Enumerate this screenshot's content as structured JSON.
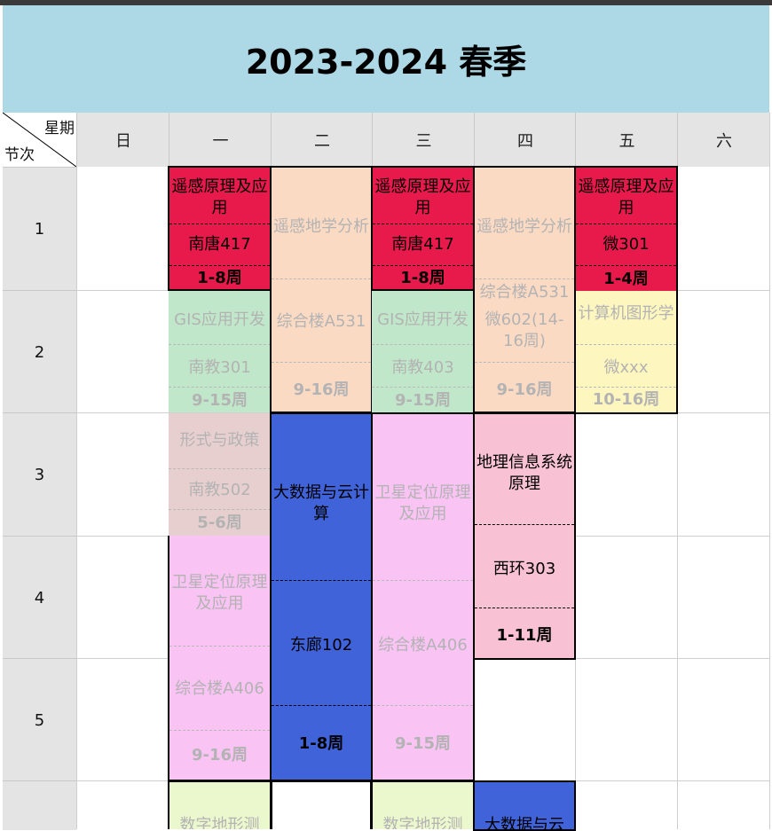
{
  "title": "2023-2024 春季",
  "corner": {
    "top": "星期",
    "bottom": "节次"
  },
  "days": [
    "日",
    "一",
    "二",
    "三",
    "四",
    "五",
    "六"
  ],
  "periods": [
    "1",
    "2",
    "3",
    "4",
    "5",
    ""
  ],
  "colors": {
    "title_bg": "#add8e6",
    "red": "#e8194b",
    "peach": "#fbdac4",
    "mint": "#c0e7c9",
    "yellow": "#fef6bf",
    "rose_grey": "#e8cfcf",
    "blue": "#4163d9",
    "pink": "#f9c3f4",
    "light_pink": "#f8c1d4",
    "lime": "#ebf7cd"
  },
  "courses": [
    {
      "name": "遥感原理及应用",
      "room": "南唐417",
      "weeks": "1-8周"
    },
    {
      "name": "遥感地学分析",
      "room": "综合楼A531",
      "weeks": "9-16周"
    },
    {
      "name": "遥感原理及应用",
      "room": "南唐417",
      "weeks": "1-8周"
    },
    {
      "name": "遥感地学分析",
      "room": "综合楼A531",
      "extra": "微602(14-16周)",
      "weeks": "9-16周"
    },
    {
      "name": "遥感原理及应用",
      "room": "微301",
      "weeks": "1-4周"
    },
    {
      "name": "GIS应用开发",
      "room": "南教301",
      "weeks": "9-15周"
    },
    {
      "name": "GIS应用开发",
      "room": "南教403",
      "weeks": "9-15周"
    },
    {
      "name": "计算机图形学",
      "room": "微xxx",
      "weeks": "10-16周"
    },
    {
      "name": "形式与政策",
      "room": "南教502",
      "weeks": "5-6周"
    },
    {
      "name": "大数据与云计算",
      "room": "东廊102",
      "weeks": "1-8周"
    },
    {
      "name": "卫星定位原理及应用",
      "room": "综合楼A406",
      "weeks": "9-15周"
    },
    {
      "name": "地理信息系统原理",
      "room": "西环303",
      "weeks": "1-11周"
    },
    {
      "name": "卫星定位原理及应用",
      "room": "综合楼A406",
      "weeks": "9-16周"
    },
    {
      "name": "数字地形测"
    },
    {
      "name": "数字地形测"
    },
    {
      "name": "大数据与云"
    }
  ]
}
